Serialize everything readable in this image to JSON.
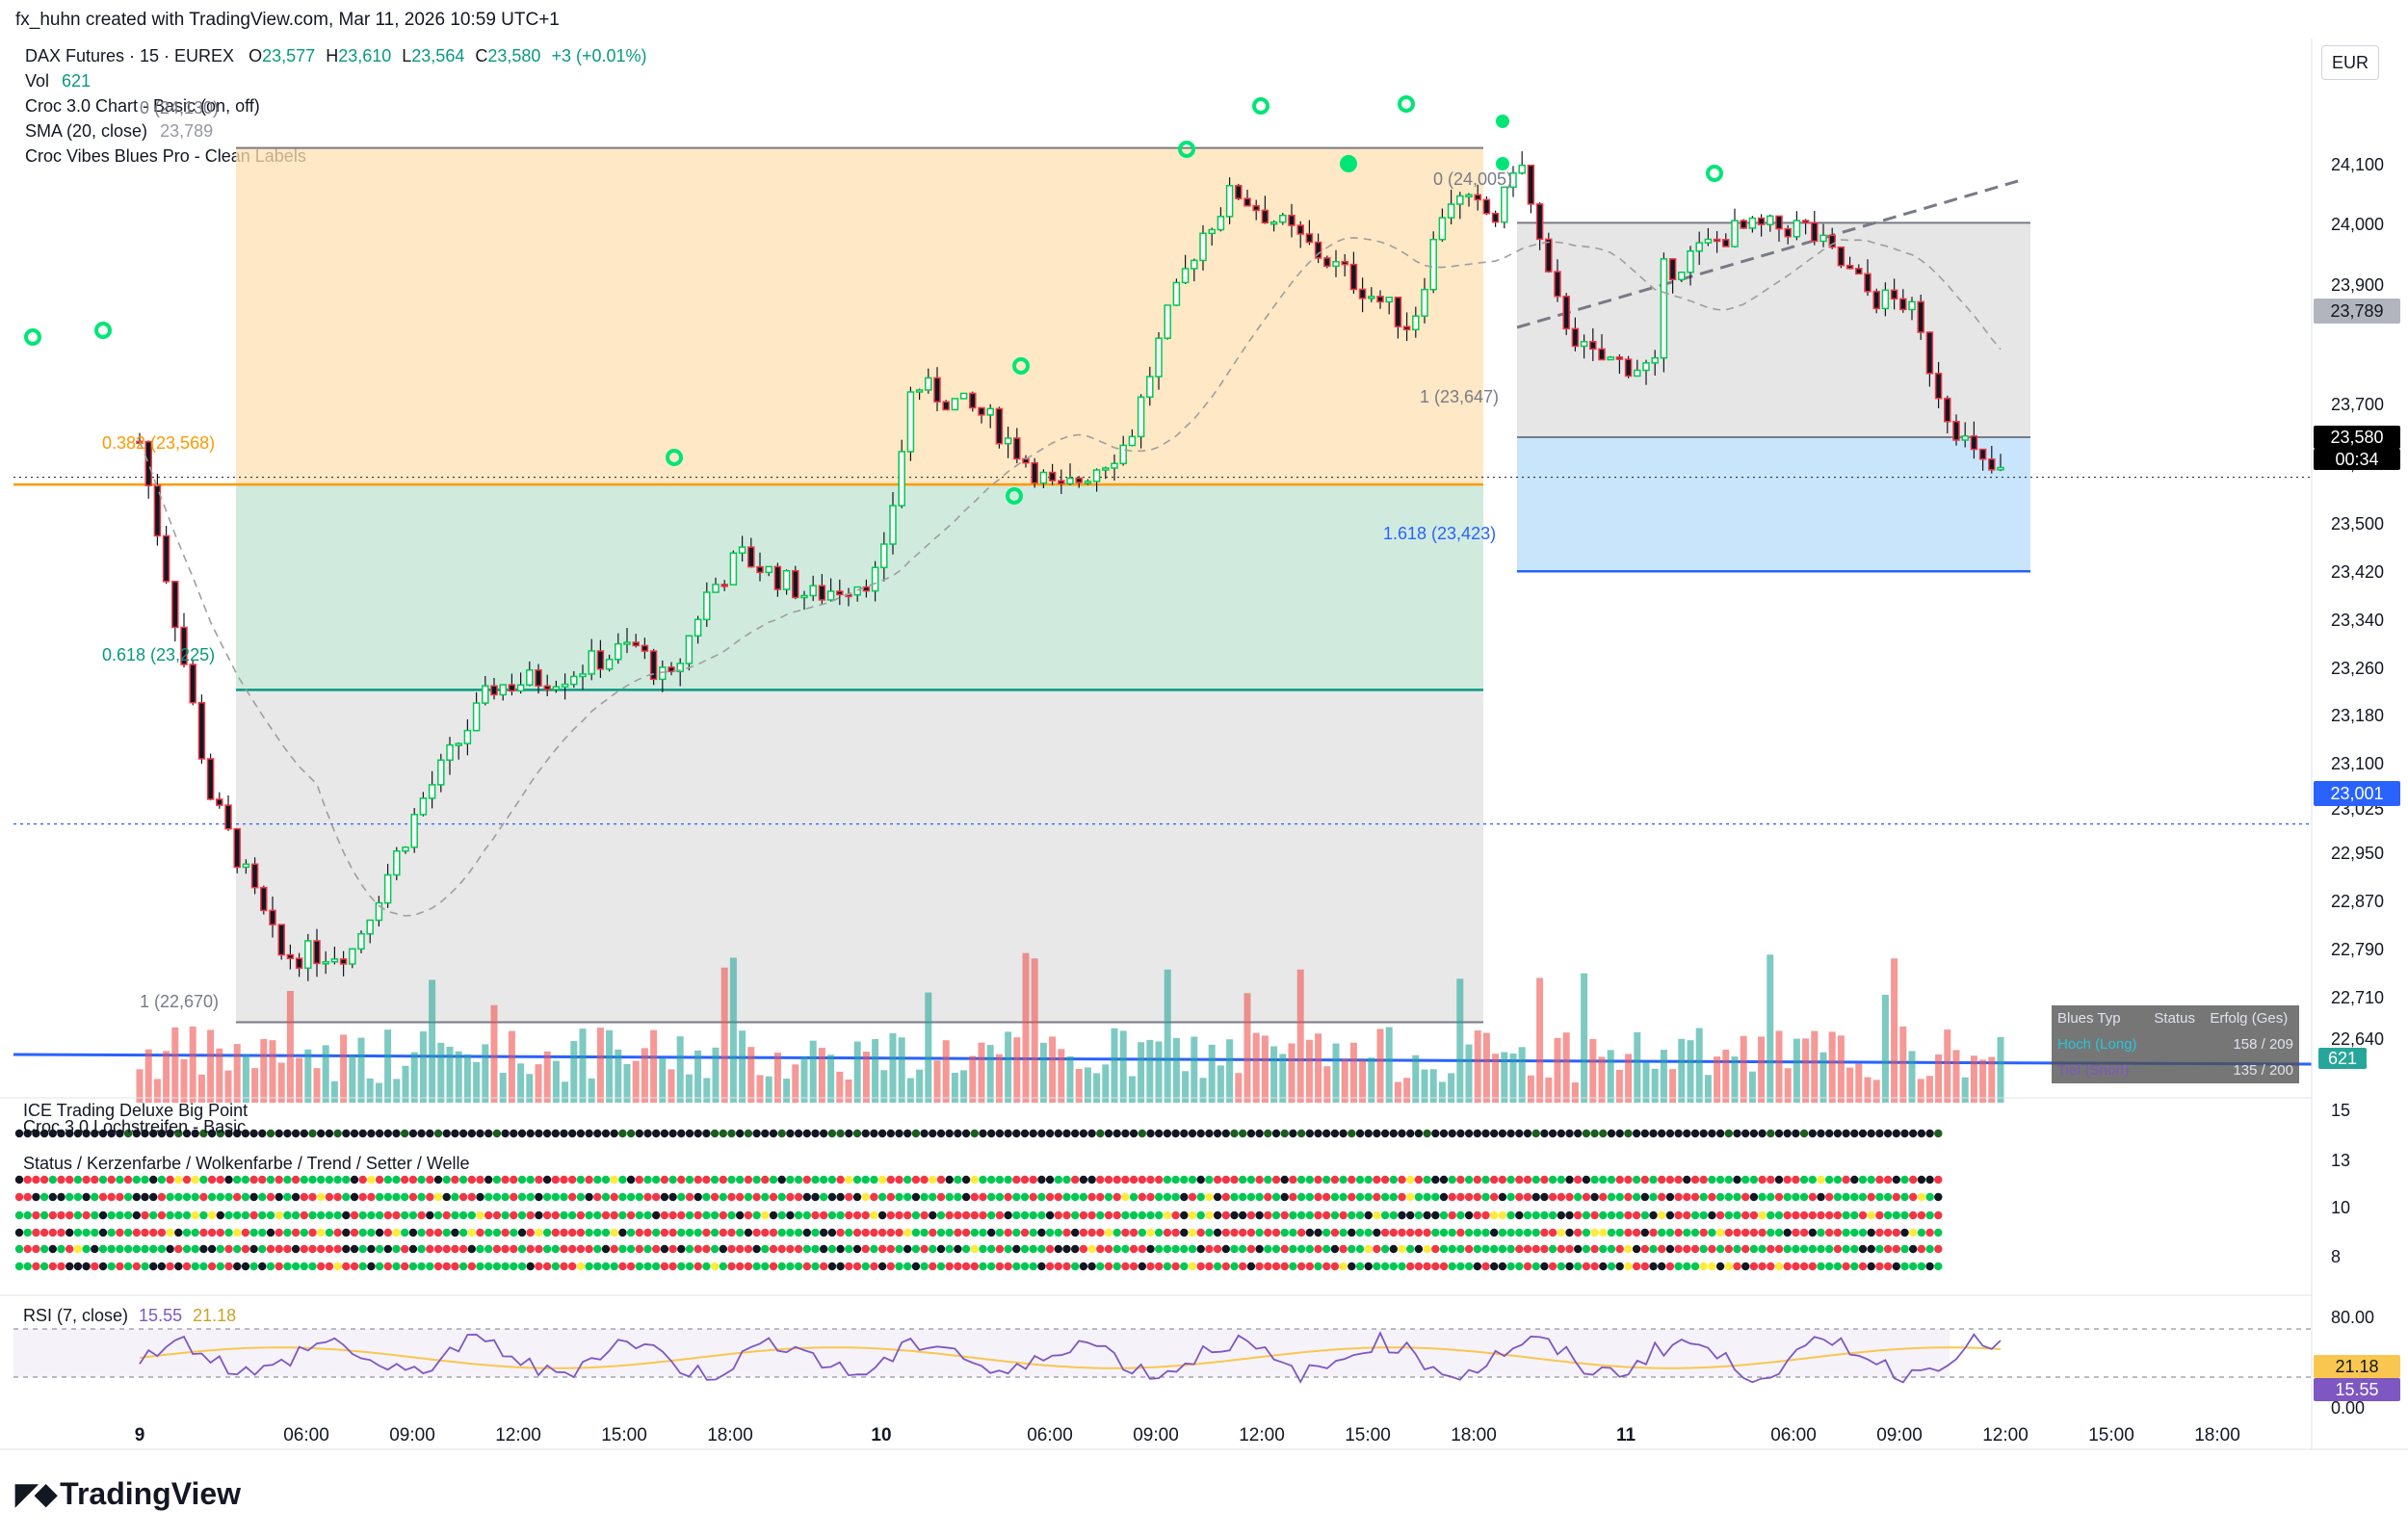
{
  "header": {
    "meta": "fx_huhn created with TradingView.com, Mar 11, 2026 10:59 UTC+1"
  },
  "legend": {
    "symbol": "DAX Futures · 15 · EUREX",
    "o_label": "O",
    "o_value": "23,577",
    "h_label": "H",
    "h_value": "23,610",
    "l_label": "L",
    "l_value": "23,564",
    "c_label": "C",
    "c_value": "23,580",
    "change": "+3 (+0.01%)",
    "vol_label": "Vol",
    "vol_value": "621",
    "croc_chart": "Croc 3.0 Chart - Basic (on, off)",
    "sma_label": "SMA (20, close)",
    "sma_value": "23,789",
    "croc_vibes": "Croc Vibes Blues Pro - Clean Labels"
  },
  "currency": "EUR",
  "y_axis": {
    "ticks": [
      "24,100",
      "24,000",
      "23,900",
      "23,789",
      "23,700",
      "23,600",
      "23,500",
      "23,420",
      "23,340",
      "23,260",
      "23,180",
      "23,100",
      "23,025",
      "22,950",
      "22,870",
      "22,790",
      "22,710",
      "22,640"
    ]
  },
  "price_tags": {
    "last_price": "23,580",
    "countdown": "00:34",
    "sma": "23,789",
    "level_blue": "23,001",
    "volume": "621"
  },
  "fib_labels": {
    "top_left": "0 (24,130)",
    "f0382": "0.382 (23,568)",
    "f0618": "0.618 (23,225)",
    "f1_left": "1 (22,670)",
    "f0_right": "0 (24,005)",
    "f1_right": "1 (23,647)",
    "f1618_right": "1.618 (23,423)"
  },
  "x_axis": {
    "ticks": [
      {
        "label": "9",
        "bold": true
      },
      {
        "label": "06:00",
        "bold": false
      },
      {
        "label": "09:00",
        "bold": false
      },
      {
        "label": "12:00",
        "bold": false
      },
      {
        "label": "15:00",
        "bold": false
      },
      {
        "label": "18:00",
        "bold": false
      },
      {
        "label": "10",
        "bold": true
      },
      {
        "label": "06:00",
        "bold": false
      },
      {
        "label": "09:00",
        "bold": false
      },
      {
        "label": "12:00",
        "bold": false
      },
      {
        "label": "15:00",
        "bold": false
      },
      {
        "label": "18:00",
        "bold": false
      },
      {
        "label": "11",
        "bold": true
      },
      {
        "label": "06:00",
        "bold": false
      },
      {
        "label": "09:00",
        "bold": false
      },
      {
        "label": "12:00",
        "bold": false
      },
      {
        "label": "15:00",
        "bold": false
      },
      {
        "label": "18:00",
        "bold": false
      }
    ]
  },
  "stats_table": {
    "headers": [
      "Blues Typ",
      "Status",
      "Erfolg (Ges)"
    ],
    "rows": [
      {
        "typ": "Hoch (Long)",
        "status": "",
        "erfolg": "158 / 209"
      },
      {
        "typ": "Tief (Short)",
        "status": "",
        "erfolg": "135 / 200"
      }
    ]
  },
  "panels": {
    "pivot_title": "ICE Trading Deluxe Big Point",
    "lochstreifen_title": "Croc 3.0 Lochstreifen - Basic",
    "status_title": "Status / Kerzenfarbe / Wolkenfarbe / Trend / Setter / Welle",
    "panel_ticks": [
      "15",
      "13",
      "10",
      "8"
    ],
    "rsi_title": "RSI (7, close)",
    "rsi_value": "15.55",
    "rsi_ma_value": "21.18",
    "rsi_ticks": [
      "80.00",
      "0.00"
    ]
  },
  "logo": {
    "text": "TradingView"
  },
  "colors": {
    "up": "#00c853",
    "down": "#f23645",
    "fib_orange": "#ff9800",
    "fib_teal": "#089981",
    "blue_line": "#2962ff",
    "rsi": "#7e57c2",
    "rsi_ma": "#f9c74f"
  },
  "chart_data": {
    "type": "candlestick",
    "title": "DAX Futures · 15 · EUREX",
    "ylim": [
      22600,
      24180
    ],
    "x_range_labels": [
      "9",
      "10",
      "11"
    ],
    "close_path": [
      {
        "day": "9",
        "time": "00:00",
        "value": 23640
      },
      {
        "day": "9",
        "time": "02:00",
        "value": 23050
      },
      {
        "day": "9",
        "time": "04:00",
        "value": 22780
      },
      {
        "day": "9",
        "time": "06:00",
        "value": 22790
      },
      {
        "day": "9",
        "time": "08:00",
        "value": 23040
      },
      {
        "day": "9",
        "time": "10:00",
        "value": 23230
      },
      {
        "day": "9",
        "time": "12:00",
        "value": 23250
      },
      {
        "day": "9",
        "time": "14:00",
        "value": 23300
      },
      {
        "day": "9",
        "time": "15:00",
        "value": 23230
      },
      {
        "day": "9",
        "time": "16:00",
        "value": 23380
      },
      {
        "day": "9",
        "time": "17:00",
        "value": 23450
      },
      {
        "day": "9",
        "time": "19:00",
        "value": 23380
      },
      {
        "day": "9",
        "time": "21:00",
        "value": 23420
      },
      {
        "day": "9",
        "time": "22:00",
        "value": 23780
      },
      {
        "day": "10",
        "time": "00:00",
        "value": 23760
      },
      {
        "day": "10",
        "time": "03:00",
        "value": 23680
      },
      {
        "day": "10",
        "time": "05:00",
        "value": 23550
      },
      {
        "day": "10",
        "time": "07:00",
        "value": 23640
      },
      {
        "day": "10",
        "time": "08:00",
        "value": 23830
      },
      {
        "day": "10",
        "time": "09:00",
        "value": 23980
      },
      {
        "day": "10",
        "time": "10:00",
        "value": 24060
      },
      {
        "day": "10",
        "time": "12:00",
        "value": 23970
      },
      {
        "day": "10",
        "time": "14:00",
        "value": 23880
      },
      {
        "day": "10",
        "time": "15:00",
        "value": 23830
      },
      {
        "day": "10",
        "time": "16:00",
        "value": 24050
      },
      {
        "day": "10",
        "time": "17:30",
        "value": 24010
      },
      {
        "day": "10",
        "time": "18:00",
        "value": 24130
      },
      {
        "day": "10",
        "time": "19:00",
        "value": 23880
      },
      {
        "day": "10",
        "time": "20:00",
        "value": 23780
      },
      {
        "day": "10",
        "time": "22:00",
        "value": 23760
      },
      {
        "day": "11",
        "time": "01:00",
        "value": 23920
      },
      {
        "day": "11",
        "time": "03:00",
        "value": 23990
      },
      {
        "day": "11",
        "time": "05:00",
        "value": 24000
      },
      {
        "day": "11",
        "time": "07:00",
        "value": 23880
      },
      {
        "day": "11",
        "time": "08:00",
        "value": 23870
      },
      {
        "day": "11",
        "time": "09:00",
        "value": 23700
      },
      {
        "day": "11",
        "time": "10:00",
        "value": 23600
      },
      {
        "day": "11",
        "time": "10:45",
        "value": 23580
      }
    ],
    "fib_levels_left": [
      {
        "level": "0",
        "value": 24130
      },
      {
        "level": "0.382",
        "value": 23568
      },
      {
        "level": "0.618",
        "value": 23225
      },
      {
        "level": "1",
        "value": 22670
      }
    ],
    "fib_levels_right": [
      {
        "level": "0",
        "value": 24005
      },
      {
        "level": "1",
        "value": 23647
      },
      {
        "level": "1.618",
        "value": 23423
      }
    ],
    "horizontal_levels": [
      {
        "name": "23,001",
        "value": 23001
      }
    ],
    "sma": {
      "period": 20,
      "value": 23789
    },
    "rsi": {
      "period": 7,
      "value": 15.55,
      "ma": 21.18,
      "ylim": [
        0,
        100
      ]
    },
    "volume_last": 621
  }
}
